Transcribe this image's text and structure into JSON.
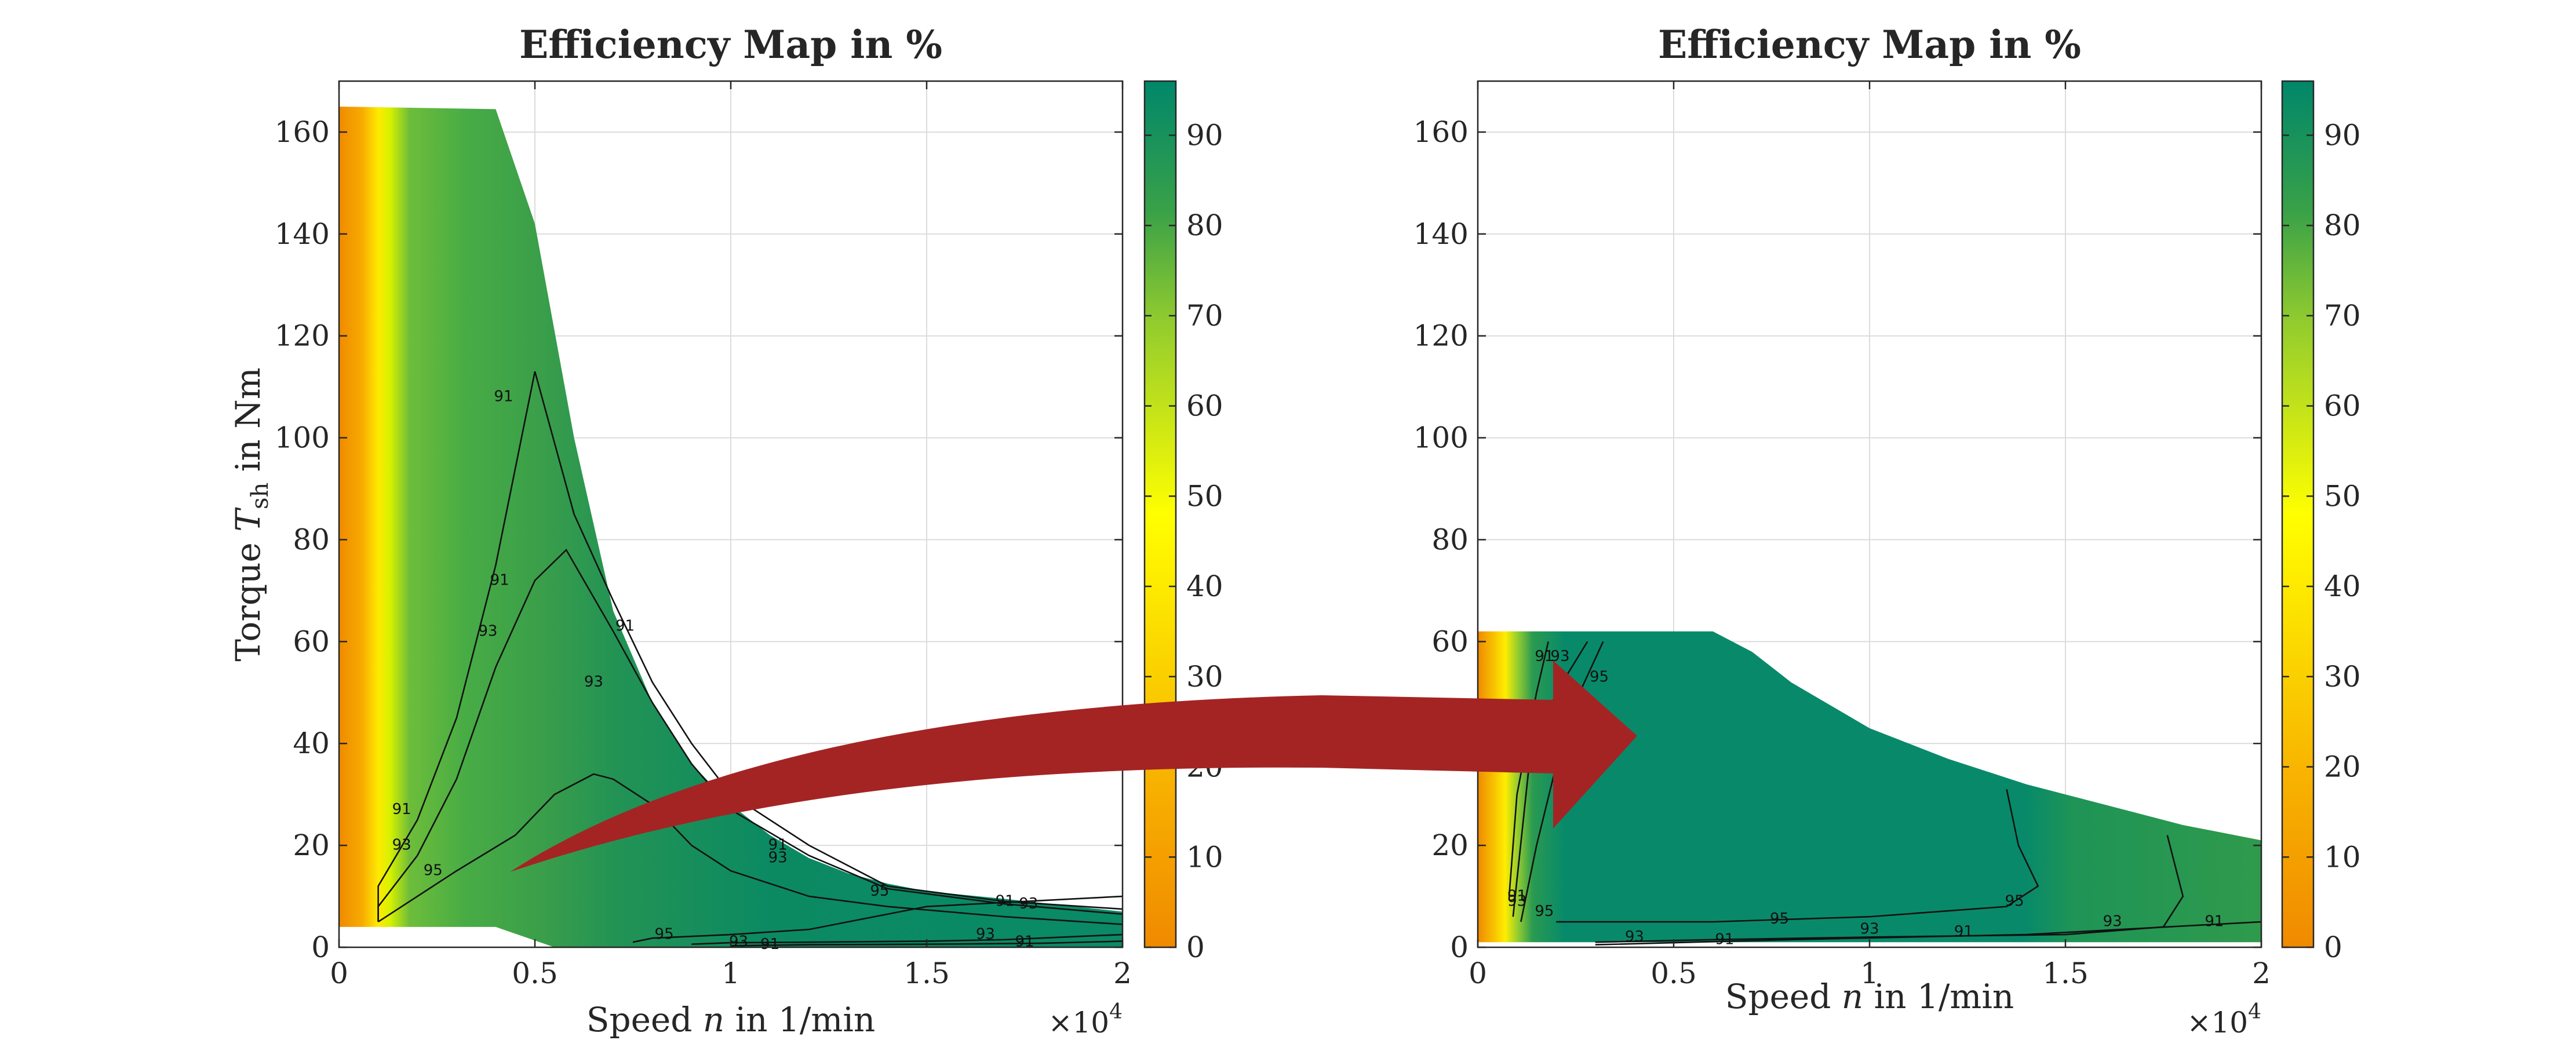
{
  "chart_data": [
    {
      "type": "heatmap",
      "title": "Efficiency Map in %",
      "xlabel": "Speed n in 1/min",
      "ylabel": "Torque T_sh in Nm",
      "x_multiplier": "×10^4",
      "xlim": [
        0,
        20000
      ],
      "ylim": [
        0,
        170
      ],
      "xticks": [
        0,
        0.5,
        1,
        1.5,
        2
      ],
      "yticks": [
        0,
        20,
        40,
        60,
        80,
        100,
        120,
        140,
        160
      ],
      "grid": true,
      "colorbar": {
        "range": [
          0,
          96
        ],
        "ticks": [
          0,
          10,
          20,
          30,
          40,
          50,
          60,
          70,
          80,
          90
        ]
      },
      "region_boundary_top": [
        [
          0,
          165
        ],
        [
          4000,
          164.5
        ],
        [
          5000,
          142
        ],
        [
          6000,
          100
        ],
        [
          7000,
          66
        ],
        [
          8000,
          48
        ],
        [
          9000,
          36
        ],
        [
          10000,
          28
        ],
        [
          11000,
          22
        ],
        [
          12000,
          17.5
        ],
        [
          13000,
          14.5
        ],
        [
          14000,
          12.5
        ],
        [
          15000,
          11
        ],
        [
          17000,
          9.5
        ],
        [
          20000,
          7
        ]
      ],
      "region_boundary_bottom": [
        [
          0,
          4
        ],
        [
          4000,
          4
        ],
        [
          5500,
          0
        ],
        [
          20000,
          0
        ]
      ],
      "contours": [
        {
          "level": 91,
          "points": [
            [
              1000,
              5
            ],
            [
              1000,
              12
            ],
            [
              2000,
              25
            ],
            [
              3000,
              45
            ],
            [
              4000,
              75
            ],
            [
              5000,
              113
            ],
            [
              6000,
              85
            ],
            [
              7000,
              68
            ],
            [
              8000,
              52
            ],
            [
              9000,
              40
            ],
            [
              10000,
              30
            ],
            [
              12000,
              20
            ],
            [
              14000,
              12
            ],
            [
              17000,
              9
            ],
            [
              20000,
              7.5
            ]
          ]
        },
        {
          "level": 93,
          "points": [
            [
              1000,
              5
            ],
            [
              1000,
              8
            ],
            [
              2000,
              18
            ],
            [
              3000,
              33
            ],
            [
              4000,
              55
            ],
            [
              5000,
              72
            ],
            [
              5800,
              78
            ],
            [
              7000,
              62
            ],
            [
              8000,
              48
            ],
            [
              9000,
              36
            ],
            [
              10000,
              27
            ],
            [
              12000,
              18
            ],
            [
              14000,
              11.5
            ],
            [
              17000,
              8.5
            ],
            [
              20000,
              6.5
            ]
          ]
        },
        {
          "level": 95,
          "points": [
            [
              1000,
              5
            ],
            [
              3000,
              15
            ],
            [
              4500,
              22
            ],
            [
              5500,
              30
            ],
            [
              6500,
              34
            ],
            [
              7000,
              33
            ],
            [
              8000,
              28
            ],
            [
              9000,
              20
            ],
            [
              10000,
              15
            ],
            [
              12000,
              10
            ],
            [
              14000,
              8
            ],
            [
              17000,
              6
            ],
            [
              20000,
              4.5
            ]
          ]
        },
        {
          "level": 95,
          "points": [
            [
              7500,
              1
            ],
            [
              8000,
              1.8
            ],
            [
              10000,
              2.5
            ],
            [
              12000,
              3.5
            ],
            [
              13000,
              5
            ],
            [
              15000,
              8
            ],
            [
              20000,
              10
            ]
          ]
        },
        {
          "level": 93,
          "points": [
            [
              9000,
              0.6
            ],
            [
              10000,
              0.9
            ],
            [
              12000,
              1
            ],
            [
              15000,
              1.2
            ],
            [
              17000,
              1.5
            ],
            [
              20000,
              2.5
            ]
          ]
        },
        {
          "level": 91,
          "points": [
            [
              10000,
              0.3
            ],
            [
              12000,
              0.5
            ],
            [
              15000,
              0.6
            ],
            [
              18000,
              0.8
            ],
            [
              20000,
              1.2
            ]
          ]
        }
      ],
      "contour_labels": [
        {
          "text": "91",
          "x": 4100,
          "y": 72
        },
        {
          "text": "91",
          "x": 4200,
          "y": 108
        },
        {
          "text": "91",
          "x": 1600,
          "y": 27
        },
        {
          "text": "93",
          "x": 1600,
          "y": 20
        },
        {
          "text": "93",
          "x": 3800,
          "y": 62
        },
        {
          "text": "93",
          "x": 6500,
          "y": 52
        },
        {
          "text": "91",
          "x": 7300,
          "y": 63
        },
        {
          "text": "95",
          "x": 2400,
          "y": 15
        },
        {
          "text": "91",
          "x": 11200,
          "y": 20
        },
        {
          "text": "93",
          "x": 11200,
          "y": 17.5
        },
        {
          "text": "95",
          "x": 13800,
          "y": 11
        },
        {
          "text": "91",
          "x": 17000,
          "y": 9
        },
        {
          "text": "93",
          "x": 17600,
          "y": 8.5
        },
        {
          "text": "93",
          "x": 16500,
          "y": 2.5
        },
        {
          "text": "91",
          "x": 17500,
          "y": 1
        },
        {
          "text": "95",
          "x": 8300,
          "y": 2.5
        },
        {
          "text": "93",
          "x": 10200,
          "y": 1
        },
        {
          "text": "91",
          "x": 11000,
          "y": 0.5
        }
      ]
    },
    {
      "type": "heatmap",
      "title": "Efficiency Map in %",
      "xlabel": "Speed n in 1/min",
      "ylabel": "",
      "x_multiplier": "×10^4",
      "xlim": [
        0,
        20000
      ],
      "ylim": [
        0,
        170
      ],
      "xticks": [
        0,
        0.5,
        1,
        1.5,
        2
      ],
      "yticks": [
        0,
        20,
        40,
        60,
        80,
        100,
        120,
        140,
        160
      ],
      "grid": true,
      "colorbar": {
        "range": [
          0,
          96
        ],
        "ticks": [
          0,
          10,
          20,
          30,
          40,
          50,
          60,
          70,
          80,
          90
        ]
      },
      "region_boundary_top": [
        [
          0,
          62
        ],
        [
          6000,
          62
        ],
        [
          7000,
          58
        ],
        [
          8000,
          52
        ],
        [
          10000,
          43
        ],
        [
          12000,
          37
        ],
        [
          14000,
          32
        ],
        [
          16000,
          28
        ],
        [
          18000,
          24
        ],
        [
          20000,
          21
        ]
      ],
      "region_boundary_bottom": [
        [
          0,
          1
        ],
        [
          20000,
          1
        ]
      ],
      "contours": [
        {
          "level": 91,
          "points": [
            [
              800,
              10
            ],
            [
              1000,
              30
            ],
            [
              1500,
              50
            ],
            [
              1800,
              60
            ]
          ]
        },
        {
          "level": 93,
          "points": [
            [
              900,
              6
            ],
            [
              1300,
              35
            ],
            [
              2000,
              50
            ],
            [
              2800,
              60
            ]
          ]
        },
        {
          "level": 95,
          "points": [
            [
              1100,
              5
            ],
            [
              1500,
              20
            ],
            [
              2300,
              45
            ],
            [
              3200,
              60
            ]
          ]
        },
        {
          "level": 93,
          "points": [
            [
              17600,
              22
            ],
            [
              17800,
              16
            ],
            [
              18000,
              10
            ],
            [
              17500,
              4
            ],
            [
              15000,
              2.5
            ],
            [
              10000,
              2
            ],
            [
              6000,
              1.5
            ],
            [
              3000,
              1
            ]
          ]
        },
        {
          "level": 95,
          "points": [
            [
              13500,
              31
            ],
            [
              13800,
              20
            ],
            [
              14300,
              12
            ],
            [
              13500,
              8
            ],
            [
              10000,
              6
            ],
            [
              6000,
              5
            ],
            [
              2000,
              5
            ]
          ]
        },
        {
          "level": 91,
          "points": [
            [
              3000,
              0.5
            ],
            [
              8000,
              1.5
            ],
            [
              14000,
              2.5
            ],
            [
              20000,
              5
            ]
          ]
        }
      ],
      "contour_labels": [
        {
          "text": "91",
          "x": 1700,
          "y": 57
        },
        {
          "text": "93",
          "x": 2100,
          "y": 57
        },
        {
          "text": "95",
          "x": 3100,
          "y": 53
        },
        {
          "text": "91",
          "x": 1000,
          "y": 10
        },
        {
          "text": "93",
          "x": 1000,
          "y": 9
        },
        {
          "text": "95",
          "x": 1700,
          "y": 7
        },
        {
          "text": "95",
          "x": 7700,
          "y": 5.5
        },
        {
          "text": "95",
          "x": 13700,
          "y": 9
        },
        {
          "text": "93",
          "x": 10000,
          "y": 3.5
        },
        {
          "text": "93",
          "x": 16200,
          "y": 5
        },
        {
          "text": "91",
          "x": 12400,
          "y": 3
        },
        {
          "text": "91",
          "x": 18800,
          "y": 5
        },
        {
          "text": "93",
          "x": 4000,
          "y": 2
        },
        {
          "text": "91",
          "x": 6300,
          "y": 1.5
        }
      ]
    }
  ]
}
